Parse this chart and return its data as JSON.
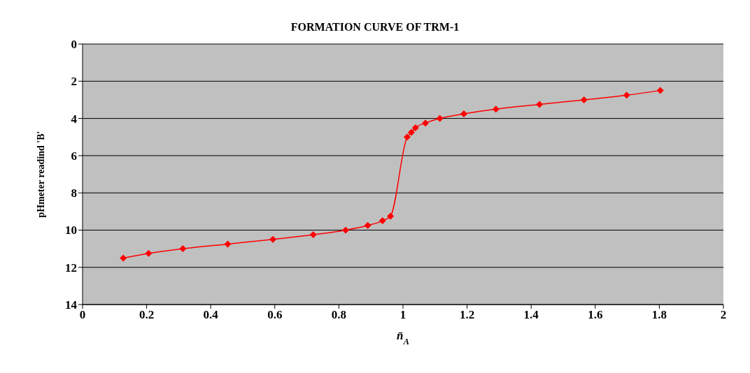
{
  "chart_data": {
    "type": "line",
    "title": "FORMATION CURVE OF TRM-1",
    "xlabel": "n̄$_{A}$",
    "ylabel": "pHmeter readind 'B'",
    "x": [
      0.127,
      0.206,
      0.313,
      0.453,
      0.594,
      0.72,
      0.821,
      0.89,
      0.936,
      0.961,
      1.013,
      1.026,
      1.039,
      1.07,
      1.115,
      1.19,
      1.29,
      1.426,
      1.565,
      1.698,
      1.803
    ],
    "series": [
      {
        "color": "#ff0000",
        "values": [
          11.5,
          11.25,
          11,
          10.75,
          10.5,
          10.25,
          10,
          9.75,
          9.5,
          9.25,
          5,
          4.75,
          4.5,
          4.25,
          4,
          3.75,
          3.5,
          3.25,
          3,
          2.75,
          2.5
        ]
      }
    ],
    "xlim": [
      0,
      2
    ],
    "xticks": [
      0,
      0.2,
      0.4,
      0.6,
      0.8,
      1,
      1.2,
      1.4,
      1.6,
      1.8,
      2
    ],
    "ylim": [
      14,
      0
    ],
    "yticks": [
      0,
      2,
      4,
      6,
      8,
      10,
      12,
      14
    ],
    "grid": "y",
    "legend": false,
    "marker": "diamond",
    "line_style": "solid"
  }
}
